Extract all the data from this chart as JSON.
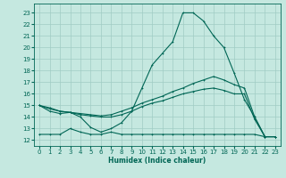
{
  "xlabel": "Humidex (Indice chaleur)",
  "bg_color": "#c5e8e0",
  "grid_color": "#a0ccc4",
  "line_color": "#006655",
  "xlim": [
    -0.5,
    23.5
  ],
  "ylim": [
    11.5,
    23.8
  ],
  "yticks": [
    12,
    13,
    14,
    15,
    16,
    17,
    18,
    19,
    20,
    21,
    22,
    23
  ],
  "xticks": [
    0,
    1,
    2,
    3,
    4,
    5,
    6,
    7,
    8,
    9,
    10,
    11,
    12,
    13,
    14,
    15,
    16,
    17,
    18,
    19,
    20,
    21,
    22,
    23
  ],
  "x": [
    0,
    1,
    2,
    3,
    4,
    5,
    6,
    7,
    8,
    9,
    10,
    11,
    12,
    13,
    14,
    15,
    16,
    17,
    18,
    19,
    20,
    21,
    22,
    23
  ],
  "line_main": [
    15.0,
    14.5,
    14.3,
    14.4,
    14.0,
    13.1,
    12.7,
    13.0,
    13.5,
    14.5,
    16.5,
    18.5,
    19.5,
    20.5,
    23.0,
    23.0,
    22.3,
    21.0,
    20.0,
    17.8,
    15.5,
    14.0,
    12.3,
    12.3
  ],
  "line_upper": [
    15.0,
    14.8,
    14.5,
    14.4,
    14.3,
    14.2,
    14.1,
    14.2,
    14.5,
    14.8,
    15.2,
    15.5,
    15.8,
    16.2,
    16.5,
    16.9,
    17.2,
    17.5,
    17.2,
    16.8,
    16.5,
    14.0,
    12.3,
    12.3
  ],
  "line_lower": [
    15.0,
    14.7,
    14.5,
    14.4,
    14.2,
    14.1,
    14.0,
    14.0,
    14.2,
    14.5,
    14.9,
    15.2,
    15.4,
    15.7,
    16.0,
    16.2,
    16.4,
    16.5,
    16.3,
    16.0,
    16.0,
    13.8,
    12.3,
    12.3
  ],
  "line_flat": [
    12.5,
    12.5,
    12.5,
    13.0,
    12.7,
    12.5,
    12.5,
    12.7,
    12.5,
    12.5,
    12.5,
    12.5,
    12.5,
    12.5,
    12.5,
    12.5,
    12.5,
    12.5,
    12.5,
    12.5,
    12.5,
    12.5,
    12.3,
    12.3
  ]
}
